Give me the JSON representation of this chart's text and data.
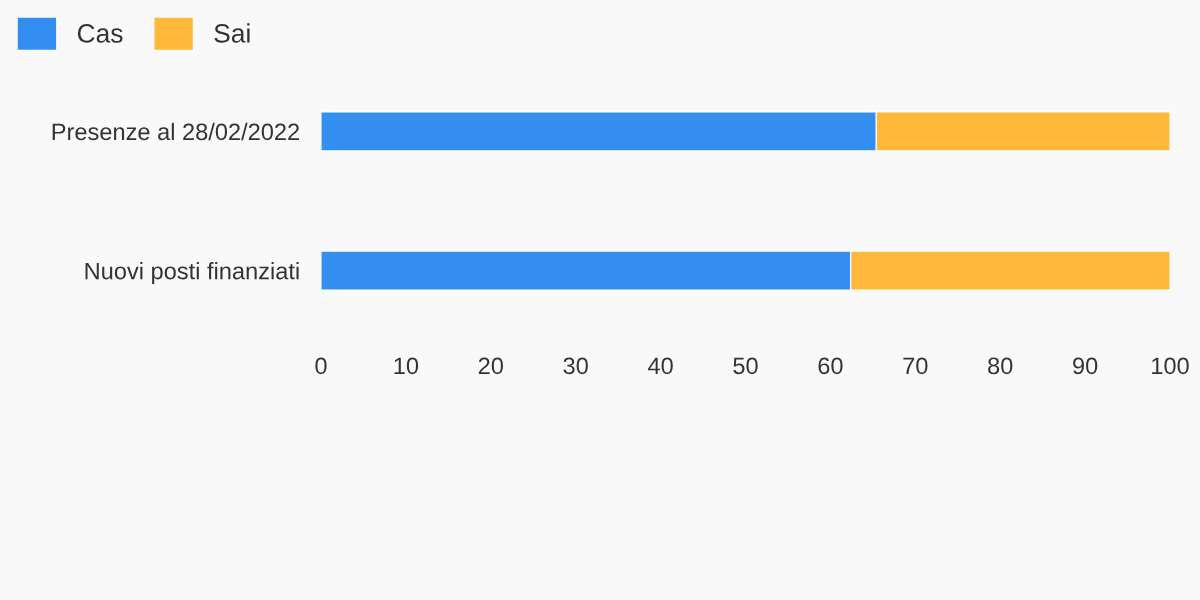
{
  "chart_data": {
    "type": "bar",
    "orientation": "horizontal",
    "stacked": true,
    "categories": [
      "Presenze al 28/02/2022",
      "Nuovi posti finanziati"
    ],
    "series": [
      {
        "name": "Cas",
        "color": "#348ef0",
        "values": [
          65.4,
          62.4
        ]
      },
      {
        "name": "Sai",
        "color": "#ffb93a",
        "values": [
          34.6,
          37.6
        ]
      }
    ],
    "xlim": [
      0,
      100
    ],
    "xticks": [
      0,
      10,
      20,
      30,
      40,
      50,
      60,
      70,
      80,
      90,
      100
    ],
    "grid": false,
    "legend": "top left"
  }
}
